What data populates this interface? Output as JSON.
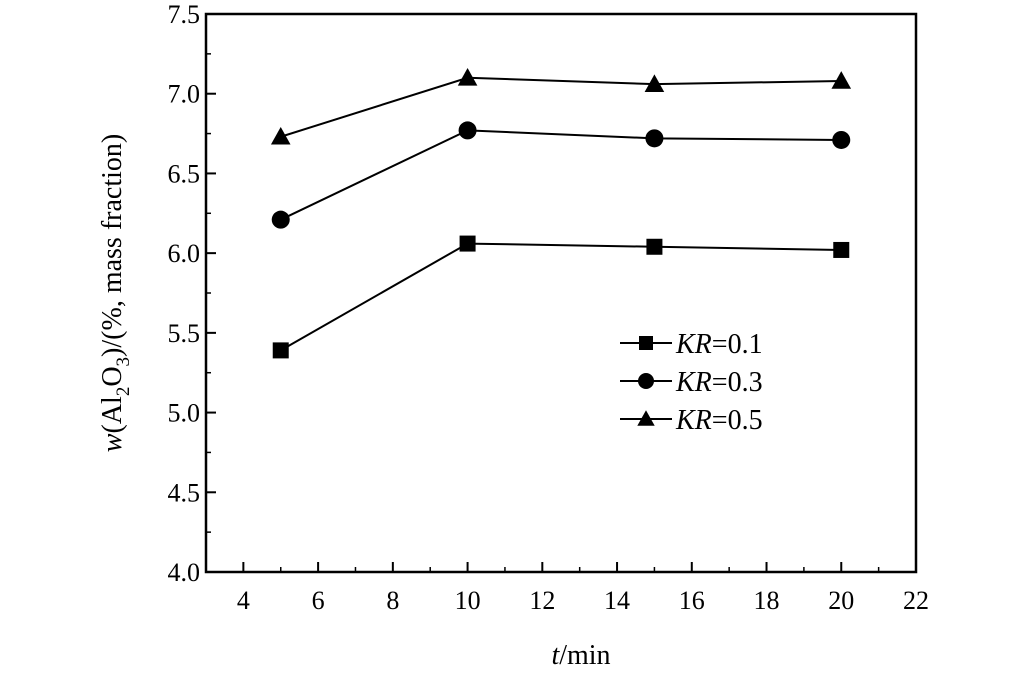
{
  "chart_data": {
    "type": "line",
    "title": "",
    "xlabel": {
      "italic": "t",
      "rest": "/min"
    },
    "ylabel": {
      "pre": "w",
      "p1": "(Al",
      "sub1": "2",
      "p2": "O",
      "sub2": "3",
      "p3": ")/(%, mass fraction)"
    },
    "xlim": [
      3,
      22
    ],
    "ylim": [
      4.0,
      7.5
    ],
    "xticks": [
      4,
      6,
      8,
      10,
      12,
      14,
      16,
      18,
      20,
      22
    ],
    "yticks": [
      "4.0",
      "4.5",
      "5.0",
      "5.5",
      "6.0",
      "6.5",
      "7.0",
      "7.5"
    ],
    "x": [
      5,
      10,
      15,
      20
    ],
    "grid": false,
    "legend_position": "center-right",
    "series": [
      {
        "name": "KR=0.1",
        "name_italic": "KR",
        "name_rest": "=0.1",
        "marker": "square",
        "values": [
          5.39,
          6.06,
          6.04,
          6.02
        ]
      },
      {
        "name": "KR=0.3",
        "name_italic": "KR",
        "name_rest": "=0.3",
        "marker": "circle",
        "values": [
          6.21,
          6.77,
          6.72,
          6.71
        ]
      },
      {
        "name": "KR=0.5",
        "name_italic": "KR",
        "name_rest": "=0.5",
        "marker": "triangle",
        "values": [
          6.73,
          7.1,
          7.06,
          7.08
        ]
      }
    ]
  }
}
